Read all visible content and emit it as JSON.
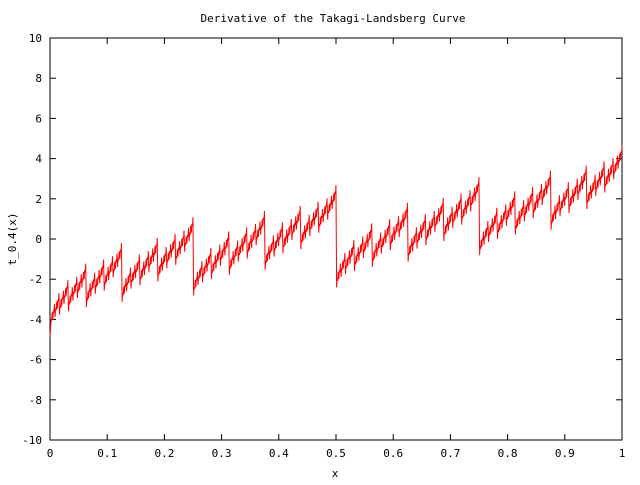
{
  "chart_data": {
    "type": "line",
    "title": "Derivative of the Takagi-Landsberg Curve",
    "xlabel": "x",
    "ylabel": "t_0.4(x)",
    "xlim": [
      0,
      1
    ],
    "ylim": [
      -10,
      10
    ],
    "x_ticks": [
      0,
      0.1,
      0.2,
      0.3,
      0.4,
      0.5,
      0.6,
      0.7,
      0.8,
      0.9,
      1
    ],
    "x_tick_labels": [
      "0",
      "0.1",
      "0.2",
      "0.3",
      "0.4",
      "0.5",
      "0.6",
      "0.7",
      "0.8",
      "0.9",
      "1"
    ],
    "y_ticks": [
      -10,
      -8,
      -6,
      -4,
      -2,
      0,
      2,
      4,
      6,
      8,
      10
    ],
    "y_tick_labels": [
      "-10",
      "-8",
      "-6",
      "-4",
      "-2",
      "0",
      "2",
      "4",
      "6",
      "8",
      "10"
    ],
    "grid": false,
    "legend": "none",
    "series": [
      {
        "color": "#ff0000",
        "function": "derivative of Takagi-Landsberg curve with w = 0.4",
        "w": 0.4,
        "approximated_samples": 1024
      }
    ]
  }
}
